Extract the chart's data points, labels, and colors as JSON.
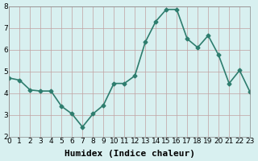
{
  "x": [
    0,
    1,
    2,
    3,
    4,
    5,
    6,
    7,
    8,
    9,
    10,
    11,
    12,
    13,
    14,
    15,
    16,
    17,
    18,
    19,
    20,
    21,
    22,
    23
  ],
  "y": [
    4.7,
    4.6,
    4.15,
    4.1,
    4.1,
    3.4,
    3.05,
    2.45,
    3.05,
    3.45,
    4.45,
    4.45,
    4.8,
    6.35,
    7.3,
    7.85,
    7.85,
    6.5,
    6.1,
    6.65,
    5.75,
    4.45,
    5.05,
    4.05
  ],
  "xlabel": "Humidex (Indice chaleur)",
  "ylabel": "",
  "ylim": [
    2,
    8
  ],
  "xlim": [
    0,
    23
  ],
  "yticks": [
    2,
    3,
    4,
    5,
    6,
    7,
    8
  ],
  "xticks": [
    0,
    1,
    2,
    3,
    4,
    5,
    6,
    7,
    8,
    9,
    10,
    11,
    12,
    13,
    14,
    15,
    16,
    17,
    18,
    19,
    20,
    21,
    22,
    23
  ],
  "line_color": "#2e7d6e",
  "marker": "D",
  "marker_size": 2.5,
  "bg_color": "#d8f0f0",
  "grid_color": "#c0a0a0",
  "line_width": 1.2,
  "xlabel_fontsize": 8,
  "tick_fontsize": 6.5
}
